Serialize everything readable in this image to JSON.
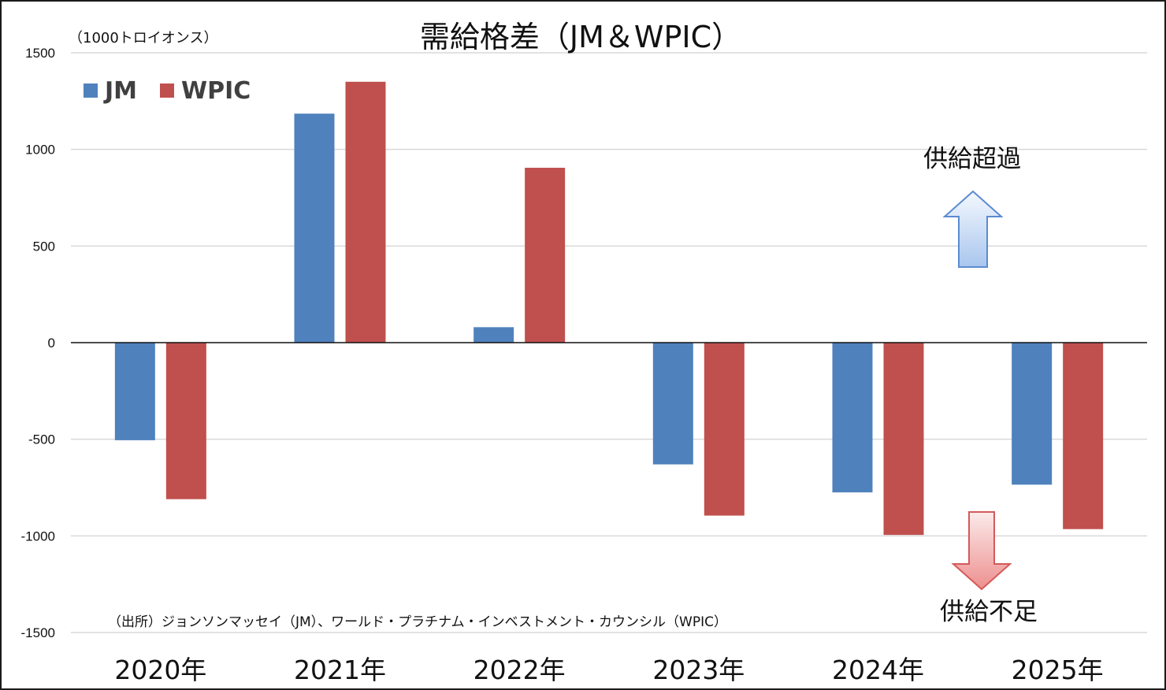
{
  "chart_data": {
    "type": "bar",
    "title": "需給格差（JM＆WPIC）",
    "unit_label": "（1000トロイオンス）",
    "categories": [
      "2020年",
      "2021年",
      "2022年",
      "2023年",
      "2024年",
      "2025年"
    ],
    "series": [
      {
        "name": "JM",
        "color": "#4f81bd",
        "values": [
          -505,
          1185,
          80,
          -630,
          -775,
          -735
        ]
      },
      {
        "name": "WPIC",
        "color": "#c0504d",
        "values": [
          -810,
          1350,
          905,
          -895,
          -995,
          -965
        ]
      }
    ],
    "ylim": [
      -1500,
      1500
    ],
    "yticks": [
      1500,
      1000,
      500,
      0,
      -500,
      -1000,
      -1500
    ],
    "grid": true,
    "legend_position": "top-left",
    "annotations": {
      "surplus": "供給超過",
      "deficit": "供給不足"
    },
    "source": "（出所）ジョンソンマッセイ（JM）、ワールド・プラチナム・インベストメント・カウンシル（WPIC）"
  }
}
